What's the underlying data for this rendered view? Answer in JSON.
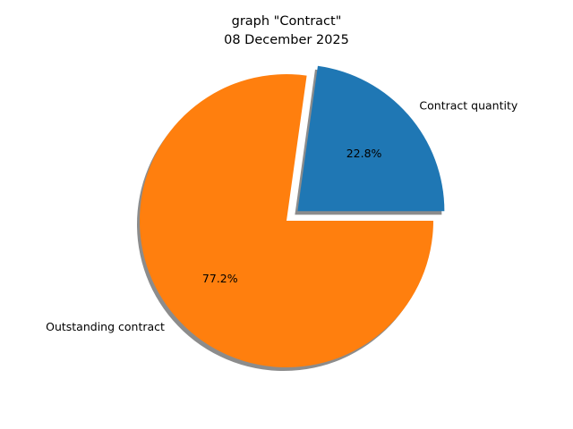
{
  "chart_data": {
    "type": "pie",
    "title_lines": [
      "graph \"Contract\"",
      "08  December  2025"
    ],
    "slices": [
      {
        "label": "Contract quantity",
        "value": 22.8,
        "pct_label": "22.8%",
        "color": "#1f77b4",
        "exploded": true
      },
      {
        "label": "Outstanding contract",
        "value": 77.2,
        "pct_label": "77.2%",
        "color": "#ff7f0e",
        "exploded": false
      }
    ],
    "shadow": true,
    "start_angle_deg": 0,
    "direction": "counterclockwise"
  }
}
